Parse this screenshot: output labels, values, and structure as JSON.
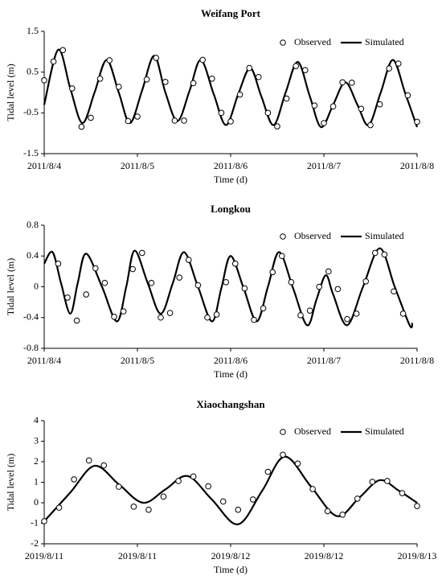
{
  "chart_data": [
    {
      "type": "line",
      "title": "Weifang Port",
      "xlabel": "Time (d)",
      "ylabel": "Tidal level (m)",
      "legend": "upper right",
      "xlim": [
        0,
        4
      ],
      "xticks": [
        {
          "value": 0,
          "label": "2011/8/4"
        },
        {
          "value": 1,
          "label": "2011/8/5"
        },
        {
          "value": 2,
          "label": "2011/8/6"
        },
        {
          "value": 3,
          "label": "2011/8/7"
        },
        {
          "value": 4,
          "label": "2011/8/8"
        }
      ],
      "ylim": [
        -1.5,
        1.5
      ],
      "yticks": [
        -1.5,
        -0.5,
        0.5,
        1.5
      ],
      "series": [
        {
          "name": "Observed",
          "type": "scatter",
          "color": "#000000",
          "x": [
            0,
            0.1,
            0.2,
            0.3,
            0.4,
            0.5,
            0.6,
            0.7,
            0.8,
            0.9,
            1.0,
            1.1,
            1.2,
            1.3,
            1.4,
            1.5,
            1.6,
            1.7,
            1.8,
            1.9,
            2.0,
            2.1,
            2.2,
            2.3,
            2.4,
            2.5,
            2.6,
            2.7,
            2.8,
            2.9,
            3.0,
            3.1,
            3.2,
            3.3,
            3.4,
            3.5,
            3.6,
            3.7,
            3.8,
            3.9,
            4.0
          ],
          "values": [
            0.3,
            0.76,
            1.04,
            0.1,
            -0.84,
            -0.62,
            0.34,
            0.79,
            0.14,
            -0.7,
            -0.59,
            0.32,
            0.85,
            0.26,
            -0.69,
            -0.69,
            0.23,
            0.8,
            0.34,
            -0.5,
            -0.71,
            -0.05,
            0.6,
            0.38,
            -0.5,
            -0.83,
            -0.15,
            0.65,
            0.55,
            -0.32,
            -0.75,
            -0.34,
            0.25,
            0.24,
            -0.4,
            -0.8,
            -0.29,
            0.59,
            0.71,
            -0.07,
            -0.72
          ]
        },
        {
          "name": "Simulated",
          "type": "line",
          "color": "#000000",
          "x": [
            0,
            0.15,
            0.28,
            0.41,
            0.54,
            0.67,
            0.8,
            0.92,
            1.05,
            1.18,
            1.3,
            1.43,
            1.56,
            1.68,
            1.82,
            1.95,
            2.08,
            2.21,
            2.33,
            2.46,
            2.59,
            2.72,
            2.85,
            2.97,
            3.1,
            3.23,
            3.36,
            3.48,
            3.61,
            3.74,
            3.87,
            4.0
          ],
          "values": [
            -0.3,
            1.05,
            0.1,
            -0.75,
            0.0,
            0.8,
            0.0,
            -0.75,
            0.05,
            0.9,
            0.0,
            -0.7,
            0.05,
            0.8,
            -0.05,
            -0.8,
            -0.05,
            0.6,
            -0.1,
            -0.8,
            0.0,
            0.75,
            -0.1,
            -0.85,
            -0.3,
            0.25,
            -0.3,
            -0.8,
            0.0,
            0.8,
            0.0,
            -0.85
          ]
        }
      ]
    },
    {
      "type": "line",
      "title": "Longkou",
      "xlabel": "Time (d)",
      "ylabel": "Tidal level (m)",
      "legend": "upper right",
      "xlim": [
        0,
        4
      ],
      "xticks": [
        {
          "value": 0,
          "label": "2011/8/4"
        },
        {
          "value": 1,
          "label": "2011/8/5"
        },
        {
          "value": 2,
          "label": "2011/8/6"
        },
        {
          "value": 3,
          "label": "2011/8/7"
        },
        {
          "value": 4,
          "label": "2011/8/8"
        }
      ],
      "ylim": [
        -0.8,
        0.8
      ],
      "yticks": [
        -0.8,
        -0.4,
        0,
        0.4,
        0.8
      ],
      "series": [
        {
          "name": "Observed",
          "type": "scatter",
          "color": "#000000",
          "x": [
            0.15,
            0.25,
            0.35,
            0.45,
            0.55,
            0.65,
            0.75,
            0.85,
            0.95,
            1.05,
            1.15,
            1.25,
            1.35,
            1.45,
            1.55,
            1.65,
            1.75,
            1.85,
            1.95,
            2.05,
            2.15,
            2.25,
            2.35,
            2.45,
            2.55,
            2.65,
            2.75,
            2.85,
            2.95,
            3.05,
            3.15,
            3.25,
            3.35,
            3.45,
            3.55,
            3.65,
            3.75,
            3.85
          ],
          "values": [
            0.3,
            -0.14,
            -0.44,
            -0.1,
            0.24,
            0.05,
            -0.39,
            -0.32,
            0.23,
            0.44,
            0.05,
            -0.4,
            -0.34,
            0.12,
            0.35,
            0.02,
            -0.4,
            -0.36,
            0.06,
            0.3,
            -0.02,
            -0.43,
            -0.28,
            0.19,
            0.4,
            0.06,
            -0.37,
            -0.31,
            0.0,
            0.2,
            -0.03,
            -0.42,
            -0.35,
            0.07,
            0.44,
            0.42,
            -0.06,
            -0.35
          ]
        },
        {
          "name": "Simulated",
          "type": "line",
          "color": "#000000",
          "x": [
            0,
            0.09,
            0.18,
            0.28,
            0.36,
            0.45,
            0.62,
            0.78,
            0.88,
            0.97,
            1.11,
            1.25,
            1.38,
            1.5,
            1.65,
            1.8,
            1.9,
            2.0,
            2.14,
            2.28,
            2.4,
            2.52,
            2.67,
            2.82,
            2.92,
            3.02,
            3.1,
            3.25,
            3.42,
            3.6,
            3.76,
            3.92,
            3.95
          ],
          "values": [
            0.3,
            0.45,
            0.05,
            -0.35,
            0.05,
            0.43,
            0,
            -0.45,
            0.0,
            0.47,
            0.05,
            -0.35,
            0.05,
            0.45,
            0,
            -0.45,
            -0.02,
            0.4,
            -0.02,
            -0.45,
            0,
            0.45,
            -0.02,
            -0.5,
            -0.17,
            0.15,
            -0.1,
            -0.5,
            0,
            0.5,
            0,
            -0.5,
            -0.47
          ]
        }
      ]
    },
    {
      "type": "line",
      "title": "Xiaochangshan",
      "xlabel": "Time (d)",
      "ylabel": "Tidal level (m)",
      "legend": "upper right",
      "xlim": [
        0,
        2
      ],
      "xticks": [
        {
          "value": 0,
          "label": "2019/8/11"
        },
        {
          "value": 0.5,
          "label": "2019/8/11"
        },
        {
          "value": 1,
          "label": "2019/8/12"
        },
        {
          "value": 1.5,
          "label": "2019/8/12"
        },
        {
          "value": 2,
          "label": "2019/8/13"
        }
      ],
      "ylim": [
        -2,
        4
      ],
      "yticks": [
        -2,
        -1,
        0,
        1,
        2,
        3,
        4
      ],
      "series": [
        {
          "name": "Observed",
          "type": "scatter",
          "color": "#000000",
          "x": [
            0,
            0.08,
            0.16,
            0.24,
            0.32,
            0.4,
            0.48,
            0.56,
            0.64,
            0.72,
            0.8,
            0.88,
            0.96,
            1.04,
            1.12,
            1.2,
            1.28,
            1.36,
            1.44,
            1.52,
            1.6,
            1.68,
            1.76,
            1.84,
            1.92,
            2.0
          ],
          "values": [
            -0.9,
            -0.24,
            1.14,
            2.06,
            1.82,
            0.78,
            -0.19,
            -0.34,
            0.3,
            1.06,
            1.28,
            0.8,
            0.06,
            -0.34,
            0.16,
            1.51,
            2.34,
            1.91,
            0.67,
            -0.41,
            -0.58,
            0.2,
            1.02,
            1.06,
            0.47,
            -0.16
          ]
        },
        {
          "name": "Simulated",
          "type": "line",
          "color": "#000000",
          "x": [
            0,
            0.14,
            0.27,
            0.4,
            0.53,
            0.65,
            0.77,
            0.9,
            1.04,
            1.17,
            1.29,
            1.43,
            1.57,
            1.69,
            1.8,
            1.9,
            2.0
          ],
          "values": [
            -0.9,
            0.5,
            1.8,
            0.9,
            0.0,
            0.65,
            1.3,
            0.15,
            -1.05,
            0.6,
            2.25,
            0.8,
            -0.65,
            0.25,
            1.1,
            0.6,
            0.0
          ]
        }
      ]
    }
  ]
}
